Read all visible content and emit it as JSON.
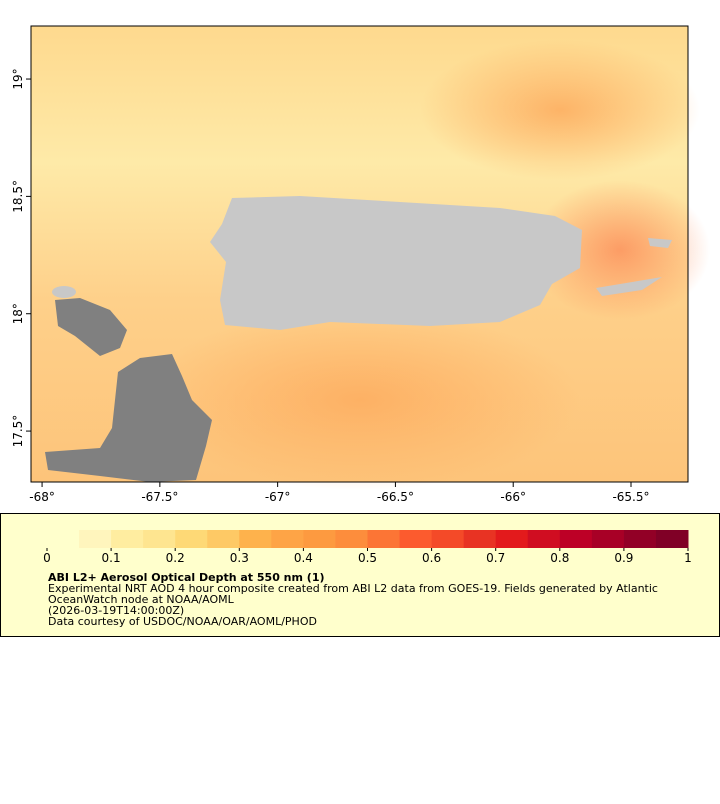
{
  "map": {
    "xlim": [
      -68.047,
      -65.258
    ],
    "ylim": [
      17.283,
      19.226
    ],
    "xticks": [
      {
        "value": -68,
        "label": "-68°"
      },
      {
        "value": -67.5,
        "label": "-67.5°"
      },
      {
        "value": -67,
        "label": "-67°"
      },
      {
        "value": -66.5,
        "label": "-66.5°"
      },
      {
        "value": -66,
        "label": "-66°"
      },
      {
        "value": -65.5,
        "label": "-65.5°"
      }
    ],
    "yticks": [
      {
        "value": 17.5,
        "label": "17.5°"
      },
      {
        "value": 18,
        "label": "18°"
      },
      {
        "value": 18.5,
        "label": "18.5°"
      },
      {
        "value": 19,
        "label": "19°"
      }
    ]
  },
  "colorbar": {
    "lim": [
      0,
      1
    ],
    "ticks": [
      0,
      0.1,
      0.2,
      0.3,
      0.4,
      0.5,
      0.6,
      0.7,
      0.8,
      0.9,
      1
    ],
    "colors": [
      "#ffffcc",
      "#fff5bd",
      "#ffeda0",
      "#fee590",
      "#fed976",
      "#fec965",
      "#feb24c",
      "#fea446",
      "#fd9a40",
      "#fd8d3c",
      "#fc7535",
      "#fc5b2e",
      "#f44a28",
      "#e83323",
      "#e31a1c",
      "#d00d21",
      "#bd0026",
      "#a80026",
      "#920026",
      "#800026"
    ]
  },
  "caption": {
    "title": "ABI L2+ Aerosol Optical Depth at 550 nm (1)",
    "lines": [
      "Experimental NRT AOD 4 hour composite created from ABI L2 data from GOES-19. Fields generated by Atlantic",
      "OceanWatch node at NOAA/AOML",
      "(2026-03-19T14:00:00Z)",
      "Data courtesy of USDOC/NOAA/OAR/AOML/PHOD"
    ]
  }
}
